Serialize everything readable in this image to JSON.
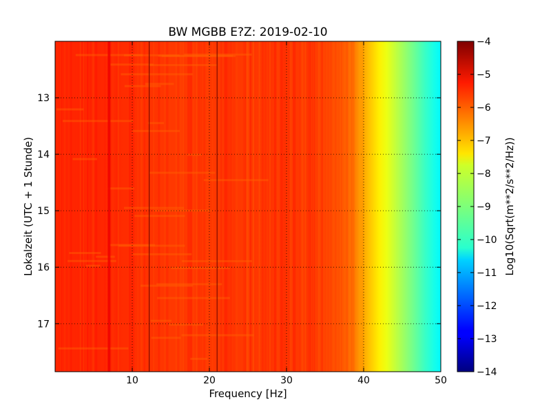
{
  "chart_data": {
    "type": "heatmap",
    "title": "BW MGBB E?Z: 2019-02-10",
    "xlabel": "Frequency [Hz]",
    "ylabel": "Lokalzeit (UTC + 1 Stunde)",
    "colorbar_label": "Log10(Sqrt(m**2/s**2/Hz))",
    "colormap": "jet",
    "xlim": [
      0,
      50
    ],
    "ylim": [
      17.85,
      12.0
    ],
    "y_inverted": true,
    "clim": [
      -14,
      -4
    ],
    "x_ticks": [
      10,
      20,
      30,
      40,
      50
    ],
    "x_tick_labels": [
      "10",
      "20",
      "30",
      "40",
      "50"
    ],
    "y_ticks": [
      13,
      14,
      15,
      16,
      17
    ],
    "y_tick_labels": [
      "13",
      "14",
      "15",
      "16",
      "17"
    ],
    "colorbar_ticks": [
      -4,
      -5,
      -6,
      -7,
      -8,
      -9,
      -10,
      -11,
      -12,
      -13,
      -14
    ],
    "colorbar_tick_labels": [
      "−4",
      "−5",
      "−6",
      "−7",
      "−8",
      "−9",
      "−10",
      "−11",
      "−12",
      "−13",
      "−14"
    ],
    "grid": true,
    "frequency_profile": {
      "frequency_hz": [
        0,
        5,
        10,
        15,
        20,
        25,
        30,
        35,
        38,
        40,
        42,
        44,
        46,
        48,
        50
      ],
      "log10_amplitude": [
        -5.6,
        -5.6,
        -5.7,
        -5.8,
        -5.8,
        -5.8,
        -5.75,
        -5.9,
        -6.2,
        -6.9,
        -7.6,
        -8.3,
        -9.0,
        -9.7,
        -10.3
      ]
    },
    "spectral_lines_hz": [
      7.0,
      12.2,
      21.0
    ]
  }
}
